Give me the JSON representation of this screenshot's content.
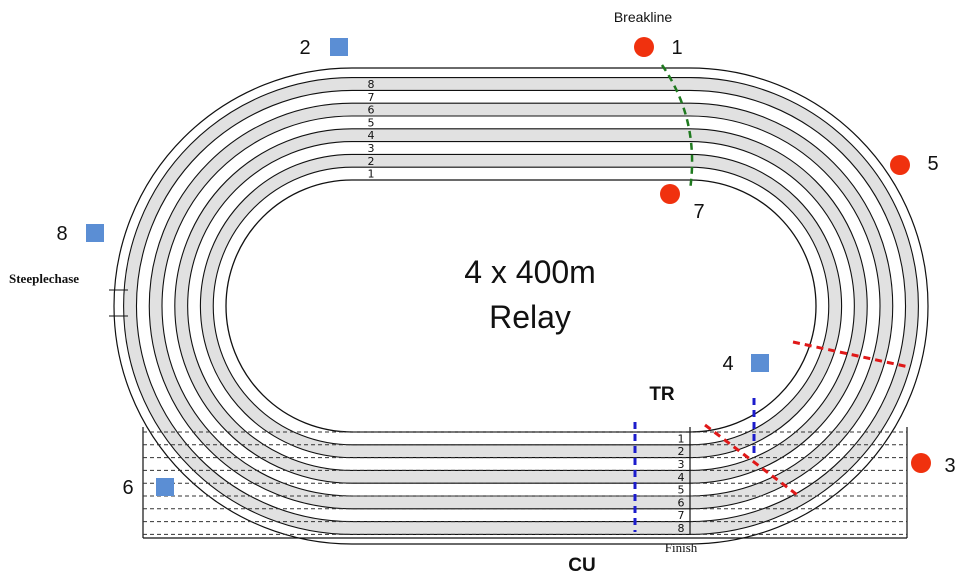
{
  "diagram": {
    "title_line1": "4 x 400m",
    "title_line2": "Relay",
    "breakline_label": "Breakline",
    "steeplechase_label": "Steeplechase",
    "finish_label": "Finish",
    "tr_label": "TR",
    "cu_label": "CU",
    "lanes_top": [
      "8",
      "7",
      "6",
      "5",
      "4",
      "3",
      "2",
      "1"
    ],
    "lanes_bottom": [
      "1",
      "2",
      "3",
      "4",
      "5",
      "6",
      "7",
      "8"
    ]
  },
  "markers": {
    "blue_squares": [
      "2",
      "8",
      "4",
      "6"
    ],
    "red_dots": [
      "1",
      "5",
      "7",
      "3"
    ]
  },
  "colors": {
    "lane_fill": "#e1e1e1",
    "track_line": "#111111",
    "blue_marker": "#5b8ed4",
    "red_marker": "#f0310e",
    "breakline": "#1f7a1f",
    "exchange_zone": "#1c1ccc",
    "stagger_line": "#e01818"
  }
}
